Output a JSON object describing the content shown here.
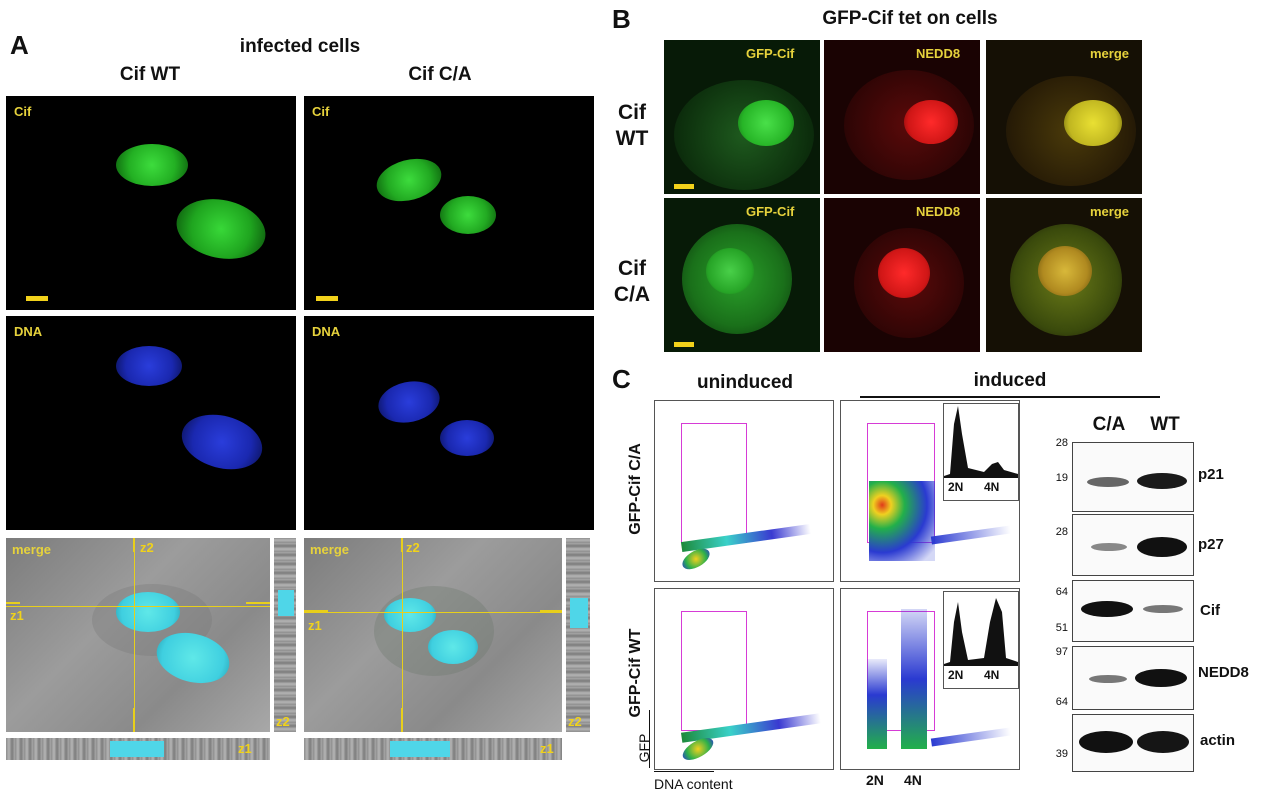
{
  "panelA": {
    "letter": "A",
    "title": "infected cells",
    "col_wt": "Cif WT",
    "col_ca": "Cif C/A",
    "ch_cif": "Cif",
    "ch_dna": "DNA",
    "ch_merge": "merge",
    "z1": "z1",
    "z2": "z2"
  },
  "panelB": {
    "letter": "B",
    "title": "GFP-Cif tet on cells",
    "row_wt_line1": "Cif",
    "row_wt_line2": "WT",
    "row_ca_line1": "Cif",
    "row_ca_line2": "C/A",
    "ch_gfp": "GFP-Cif",
    "ch_nedd8": "NEDD8",
    "ch_merge": "merge"
  },
  "panelC": {
    "letter": "C",
    "col_uninduced": "uninduced",
    "col_induced": "induced",
    "row_ca": "GFP-Cif C/A",
    "row_wt": "GFP-Cif WT",
    "axis_y": "GFP",
    "axis_x": "DNA content",
    "tick_2n": "2N",
    "tick_4n": "4N",
    "blot_lanes": [
      "C/A",
      "WT"
    ],
    "blots": [
      {
        "protein": "p21",
        "mw": [
          "28",
          "19"
        ]
      },
      {
        "protein": "p27",
        "mw": [
          "28"
        ]
      },
      {
        "protein": "Cif",
        "mw": [
          "64",
          "51"
        ]
      },
      {
        "protein": "NEDD8",
        "mw": [
          "97",
          "64"
        ]
      },
      {
        "protein": "actin",
        "mw": [
          "39"
        ]
      }
    ]
  }
}
